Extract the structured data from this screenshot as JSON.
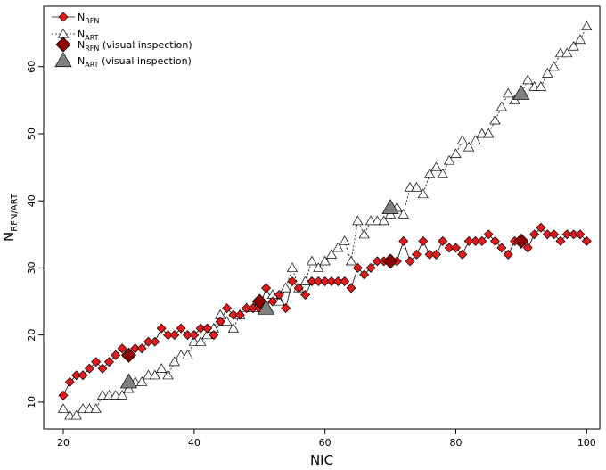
{
  "chart_data": {
    "type": "scatter",
    "title": "",
    "xlabel": "NIC",
    "ylabel_main": "N",
    "ylabel_sub": "RFN/ART",
    "xlim": [
      17,
      102
    ],
    "ylim": [
      6,
      69
    ],
    "xticks": [
      20,
      40,
      60,
      80,
      100
    ],
    "yticks": [
      10,
      20,
      30,
      40,
      50,
      60
    ],
    "grid": false,
    "legend_position": "top-left",
    "colors": {
      "rfn": "#e31a1c",
      "rfn_visual": "#8b0000",
      "art": "#ffffff",
      "art_visual": "#808080"
    },
    "legend": [
      {
        "main": "N",
        "sub": "RFN",
        "suffix": ""
      },
      {
        "main": "N",
        "sub": "ART",
        "suffix": ""
      },
      {
        "main": "N",
        "sub": "RFN",
        "suffix": " (visual inspection)"
      },
      {
        "main": "N",
        "sub": "ART",
        "suffix": " (visual inspection)"
      }
    ],
    "series": [
      {
        "key": "rfn",
        "line": "solid",
        "marker": "diamond",
        "x": [
          20,
          21,
          22,
          23,
          24,
          25,
          26,
          27,
          28,
          29,
          30,
          31,
          32,
          33,
          34,
          35,
          36,
          37,
          38,
          39,
          40,
          41,
          42,
          43,
          44,
          45,
          46,
          47,
          48,
          49,
          50,
          51,
          52,
          53,
          54,
          55,
          56,
          57,
          58,
          59,
          60,
          61,
          62,
          63,
          64,
          65,
          66,
          67,
          68,
          69,
          70,
          71,
          72,
          73,
          74,
          75,
          76,
          77,
          78,
          79,
          80,
          81,
          82,
          83,
          84,
          85,
          86,
          87,
          88,
          89,
          90,
          91,
          92,
          93,
          94,
          95,
          96,
          97,
          98,
          99,
          100
        ],
        "y": [
          11,
          13,
          14,
          14,
          15,
          16,
          15,
          16,
          17,
          18,
          17,
          18,
          18,
          19,
          19,
          21,
          20,
          20,
          21,
          20,
          20,
          21,
          21,
          20,
          22,
          24,
          23,
          23,
          24,
          24,
          24,
          27,
          25,
          26,
          24,
          28,
          27,
          26,
          28,
          28,
          28,
          28,
          28,
          28,
          27,
          30,
          29,
          30,
          31,
          31,
          31,
          31,
          34,
          31,
          32,
          34,
          32,
          32,
          34,
          33,
          33,
          32,
          34,
          34,
          34,
          35,
          34,
          33,
          32,
          34,
          34,
          33,
          35,
          36,
          35,
          35,
          34,
          35,
          35,
          35,
          34
        ]
      },
      {
        "key": "art",
        "line": "dashed",
        "marker": "triangle",
        "x": [
          20,
          21,
          22,
          23,
          24,
          25,
          26,
          27,
          28,
          29,
          30,
          31,
          32,
          33,
          34,
          35,
          36,
          37,
          38,
          39,
          40,
          41,
          42,
          43,
          44,
          45,
          46,
          47,
          48,
          49,
          50,
          51,
          52,
          53,
          54,
          55,
          56,
          57,
          58,
          59,
          60,
          61,
          62,
          63,
          64,
          65,
          66,
          67,
          68,
          69,
          70,
          71,
          72,
          73,
          74,
          75,
          76,
          77,
          78,
          79,
          80,
          81,
          82,
          83,
          84,
          85,
          86,
          87,
          88,
          89,
          90,
          91,
          92,
          93,
          94,
          95,
          96,
          97,
          98,
          99,
          100
        ],
        "y": [
          9,
          8,
          8,
          9,
          9,
          9,
          11,
          11,
          11,
          11,
          12,
          13,
          13,
          14,
          14,
          15,
          14,
          16,
          17,
          17,
          19,
          19,
          20,
          21,
          23,
          22,
          21,
          23,
          24,
          24,
          25,
          24,
          26,
          25,
          27,
          30,
          27,
          28,
          31,
          30,
          31,
          32,
          33,
          34,
          31,
          37,
          35,
          37,
          37,
          37,
          38,
          39,
          38,
          42,
          42,
          41,
          44,
          45,
          44,
          46,
          47,
          49,
          48,
          49,
          50,
          50,
          52,
          54,
          56,
          55,
          56,
          58,
          57,
          57,
          59,
          60,
          62,
          62,
          63,
          64,
          66
        ]
      },
      {
        "key": "rfn_visual",
        "line": "none",
        "marker": "diamond-large",
        "x": [
          30,
          50,
          70,
          90
        ],
        "y": [
          17,
          25,
          31,
          34
        ]
      },
      {
        "key": "art_visual",
        "line": "none",
        "marker": "triangle-large",
        "x": [
          30,
          51,
          70,
          90
        ],
        "y": [
          13,
          24,
          39,
          56
        ]
      }
    ]
  }
}
